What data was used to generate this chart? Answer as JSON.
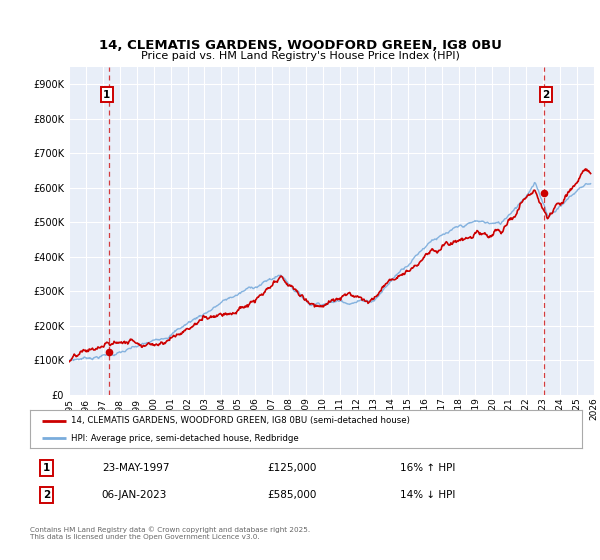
{
  "title": "14, CLEMATIS GARDENS, WOODFORD GREEN, IG8 0BU",
  "subtitle": "Price paid vs. HM Land Registry's House Price Index (HPI)",
  "legend_entry1": "14, CLEMATIS GARDENS, WOODFORD GREEN, IG8 0BU (semi-detached house)",
  "legend_entry2": "HPI: Average price, semi-detached house, Redbridge",
  "sale1_price": 125000,
  "sale1_label": "23-MAY-1997",
  "sale1_pct": "16% ↑ HPI",
  "sale1_yr": 1997.39,
  "sale2_price": 585000,
  "sale2_label": "06-JAN-2023",
  "sale2_pct": "14% ↓ HPI",
  "sale2_yr": 2023.02,
  "red_color": "#cc0000",
  "blue_color": "#7aacdc",
  "vline_color": "#cc0000",
  "plot_bg": "#e8eef8",
  "grid_color": "#ffffff",
  "footer": "Contains HM Land Registry data © Crown copyright and database right 2025.\nThis data is licensed under the Open Government Licence v3.0.",
  "ylim": [
    0,
    950000
  ],
  "yticks": [
    0,
    100000,
    200000,
    300000,
    400000,
    500000,
    600000,
    700000,
    800000,
    900000
  ],
  "xmin": 1995.0,
  "xmax": 2026.0
}
